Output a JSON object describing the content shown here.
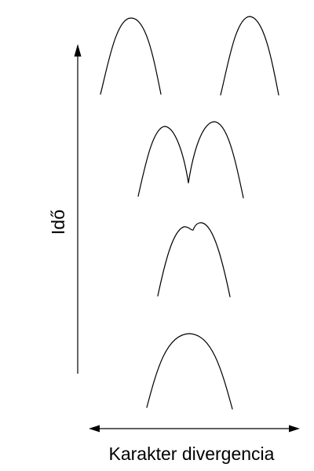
{
  "axes": {
    "y_label": "Idő",
    "x_label": "Karakter divergencia"
  },
  "stages": [
    {
      "name": "stage-1",
      "description_shape": "single-peak"
    },
    {
      "name": "stage-2",
      "description_shape": "slightly-bimodal"
    },
    {
      "name": "stage-3",
      "description_shape": "bimodal-touching"
    },
    {
      "name": "stage-4",
      "description_shape": "two-separate-peaks"
    }
  ],
  "colors": {
    "stroke": "#000000",
    "background": "#ffffff"
  }
}
